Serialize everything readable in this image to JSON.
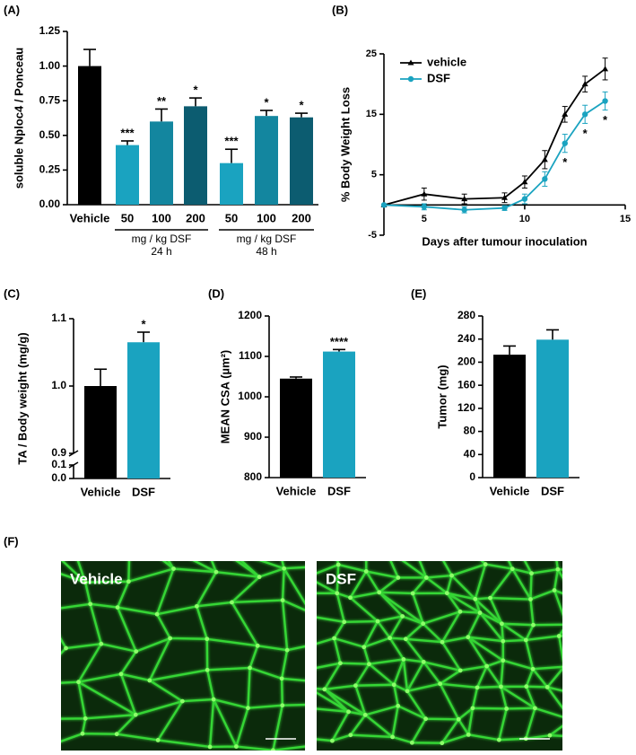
{
  "chart_data": [
    {
      "type": "bar",
      "panel_label": "(A)",
      "ylabel": "soluble Nploc4 / Ponceau",
      "categories": [
        "Vehicle",
        "50",
        "100",
        "200",
        "50",
        "100",
        "200"
      ],
      "values": [
        1.0,
        0.43,
        0.6,
        0.71,
        0.3,
        0.64,
        0.63
      ],
      "errors": [
        0.12,
        0.03,
        0.09,
        0.06,
        0.1,
        0.04,
        0.03
      ],
      "colors": [
        "#000000",
        "#1aa3c0",
        "#13869f",
        "#0c5c70",
        "#1aa3c0",
        "#13869f",
        "#0c5c70"
      ],
      "significance": [
        null,
        "***",
        "**",
        "*",
        "***",
        "*",
        "*"
      ],
      "groups": [
        {
          "label": "mg / kg DSF",
          "sublabel": "24 h"
        },
        {
          "label": "mg / kg DSF",
          "sublabel": "48 h"
        }
      ],
      "ylim": [
        0,
        1.25
      ],
      "yticks": [
        {
          "value": 0,
          "label": "0.00"
        },
        {
          "value": 0.25,
          "label": "0.25"
        },
        {
          "value": 0.5,
          "label": "0.50"
        },
        {
          "value": 0.75,
          "label": "0.75"
        },
        {
          "value": 1,
          "label": "1.00"
        },
        {
          "value": 1.25,
          "label": "1.25"
        }
      ]
    },
    {
      "type": "line",
      "panel_label": "(B)",
      "xlabel": "Days after tumour inoculation",
      "ylabel": "% Body Weight Loss",
      "x": [
        3,
        5,
        7,
        9,
        10,
        11,
        12,
        13,
        14
      ],
      "series": [
        {
          "name": "vehicle",
          "color": "#000000",
          "marker": "triangle",
          "values": [
            0,
            1.8,
            1.0,
            1.2,
            3.8,
            7.5,
            15,
            20,
            22.5
          ],
          "errors": [
            0,
            1.0,
            0.8,
            0.8,
            1.0,
            1.5,
            1.3,
            1.3,
            1.8
          ]
        },
        {
          "name": "DSF",
          "color": "#1aa3c0",
          "marker": "circle",
          "values": [
            0,
            -0.3,
            -0.8,
            -0.5,
            1.0,
            4.3,
            10.2,
            15,
            17.2
          ],
          "errors": [
            0,
            0.5,
            0.5,
            0.4,
            0.8,
            1.2,
            1.5,
            1.5,
            1.5
          ],
          "significance": [
            null,
            null,
            null,
            null,
            null,
            null,
            "*",
            "*",
            "*"
          ]
        }
      ],
      "xlim": [
        3,
        15
      ],
      "xticks": [
        5,
        10,
        15
      ],
      "ylim": [
        -5,
        25
      ],
      "yticks": [
        -5,
        5,
        15,
        25
      ],
      "legend": "upper left"
    },
    {
      "type": "bar",
      "panel_label": "(C)",
      "ylabel": "TA / Body weight (mg/g)",
      "categories": [
        "Vehicle",
        "DSF"
      ],
      "values": [
        1.0,
        1.065
      ],
      "errors": [
        0.025,
        0.015
      ],
      "colors": [
        "#000000",
        "#1aa3c0"
      ],
      "significance": [
        null,
        "*"
      ],
      "ylim": [
        0,
        1.1
      ],
      "axis_break": [
        0.1,
        0.9
      ],
      "yticks": [
        {
          "value": 0,
          "label": "0.0"
        },
        {
          "value": 0.1,
          "label": "0.1"
        },
        {
          "value": 0.9,
          "label": "0.9"
        },
        {
          "value": 1,
          "label": "1.0"
        },
        {
          "value": 1.1,
          "label": "1.1"
        }
      ]
    },
    {
      "type": "bar",
      "panel_label": "(D)",
      "ylabel": "MEAN CSA (µm²)",
      "categories": [
        "Vehicle",
        "DSF"
      ],
      "values": [
        1045,
        1112
      ],
      "errors": [
        4,
        5
      ],
      "colors": [
        "#000000",
        "#1aa3c0"
      ],
      "significance": [
        null,
        "****"
      ],
      "ylim": [
        800,
        1200
      ],
      "yticks": [
        800,
        900,
        1000,
        1100,
        1200
      ]
    },
    {
      "type": "bar",
      "panel_label": "(E)",
      "ylabel": "Tumor (mg)",
      "categories": [
        "Vehicle",
        "DSF"
      ],
      "values": [
        213,
        239
      ],
      "errors": [
        15,
        17
      ],
      "colors": [
        "#000000",
        "#1aa3c0"
      ],
      "ylim": [
        0,
        280
      ],
      "yticks": [
        0,
        40,
        80,
        120,
        160,
        200,
        240,
        280
      ]
    }
  ],
  "micrographs": {
    "panel_label": "(F)",
    "labels": [
      "Vehicle",
      "DSF"
    ]
  }
}
